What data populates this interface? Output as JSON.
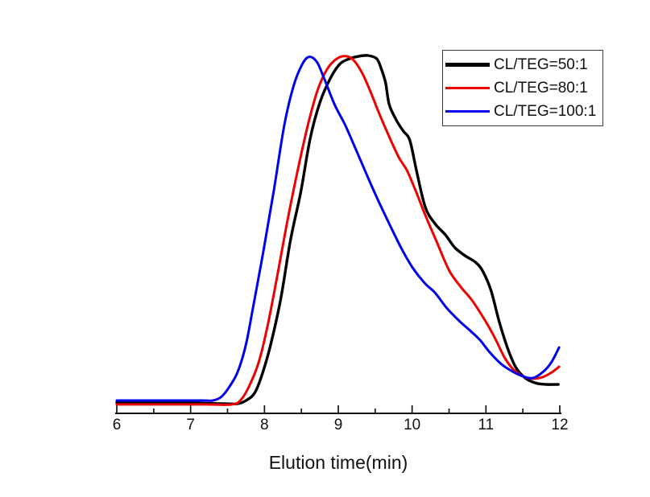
{
  "figure": {
    "background": "#ffffff",
    "axis_color": "#111111"
  },
  "chart_data": {
    "type": "line",
    "title": "",
    "xlabel": "Elution time(min)",
    "ylabel": "",
    "xlim": [
      6,
      12
    ],
    "ylim": [
      0,
      1.08
    ],
    "x_major_ticks": [
      6,
      7,
      8,
      9,
      10,
      11,
      12
    ],
    "x_minor_tick_step": 0.5,
    "grid": false,
    "legend": {
      "position": "top-right",
      "border": true
    },
    "series": [
      {
        "name": "CL/TEG=50:1",
        "color": "#000000",
        "line_width": 3.4,
        "points": [
          [
            6.0,
            0.03
          ],
          [
            6.5,
            0.029
          ],
          [
            7.0,
            0.029
          ],
          [
            7.45,
            0.027
          ],
          [
            7.64,
            0.027
          ],
          [
            7.76,
            0.037
          ],
          [
            7.87,
            0.058
          ],
          [
            7.97,
            0.11
          ],
          [
            8.08,
            0.189
          ],
          [
            8.22,
            0.319
          ],
          [
            8.35,
            0.481
          ],
          [
            8.49,
            0.617
          ],
          [
            8.62,
            0.769
          ],
          [
            8.75,
            0.868
          ],
          [
            8.89,
            0.935
          ],
          [
            9.02,
            0.976
          ],
          [
            9.15,
            0.991
          ],
          [
            9.28,
            0.998
          ],
          [
            9.4,
            1.0
          ],
          [
            9.52,
            0.991
          ],
          [
            9.58,
            0.964
          ],
          [
            9.64,
            0.924
          ],
          [
            9.69,
            0.863
          ],
          [
            9.79,
            0.818
          ],
          [
            9.88,
            0.789
          ],
          [
            9.97,
            0.762
          ],
          [
            10.06,
            0.677
          ],
          [
            10.18,
            0.575
          ],
          [
            10.31,
            0.53
          ],
          [
            10.45,
            0.499
          ],
          [
            10.58,
            0.463
          ],
          [
            10.72,
            0.44
          ],
          [
            10.86,
            0.422
          ],
          [
            10.96,
            0.396
          ],
          [
            11.07,
            0.342
          ],
          [
            11.18,
            0.256
          ],
          [
            11.29,
            0.184
          ],
          [
            11.4,
            0.13
          ],
          [
            11.53,
            0.099
          ],
          [
            11.67,
            0.085
          ],
          [
            11.81,
            0.081
          ],
          [
            11.98,
            0.081
          ]
        ]
      },
      {
        "name": "CL/TEG=80:1",
        "color": "#ee0000",
        "line_width": 3.0,
        "points": [
          [
            6.0,
            0.025
          ],
          [
            6.6,
            0.025
          ],
          [
            7.2,
            0.025
          ],
          [
            7.56,
            0.025
          ],
          [
            7.69,
            0.04
          ],
          [
            7.82,
            0.088
          ],
          [
            7.93,
            0.148
          ],
          [
            8.05,
            0.252
          ],
          [
            8.18,
            0.391
          ],
          [
            8.31,
            0.537
          ],
          [
            8.45,
            0.679
          ],
          [
            8.59,
            0.807
          ],
          [
            8.72,
            0.903
          ],
          [
            8.85,
            0.962
          ],
          [
            8.98,
            0.991
          ],
          [
            9.11,
            0.998
          ],
          [
            9.22,
            0.984
          ],
          [
            9.33,
            0.948
          ],
          [
            9.44,
            0.897
          ],
          [
            9.55,
            0.84
          ],
          [
            9.69,
            0.773
          ],
          [
            9.82,
            0.715
          ],
          [
            9.93,
            0.679
          ],
          [
            10.06,
            0.616
          ],
          [
            10.18,
            0.553
          ],
          [
            10.33,
            0.481
          ],
          [
            10.5,
            0.4
          ],
          [
            10.66,
            0.353
          ],
          [
            10.8,
            0.319
          ],
          [
            10.93,
            0.279
          ],
          [
            11.03,
            0.245
          ],
          [
            11.13,
            0.207
          ],
          [
            11.26,
            0.153
          ],
          [
            11.4,
            0.117
          ],
          [
            11.56,
            0.099
          ],
          [
            11.73,
            0.099
          ],
          [
            11.87,
            0.112
          ],
          [
            11.99,
            0.13
          ]
        ]
      },
      {
        "name": "CL/TEG=100:1",
        "color": "#0000ee",
        "line_width": 3.0,
        "points": [
          [
            6.0,
            0.036
          ],
          [
            6.6,
            0.036
          ],
          [
            7.15,
            0.036
          ],
          [
            7.3,
            0.036
          ],
          [
            7.42,
            0.047
          ],
          [
            7.53,
            0.076
          ],
          [
            7.64,
            0.117
          ],
          [
            7.75,
            0.193
          ],
          [
            7.85,
            0.301
          ],
          [
            7.99,
            0.458
          ],
          [
            8.13,
            0.627
          ],
          [
            8.27,
            0.807
          ],
          [
            8.39,
            0.912
          ],
          [
            8.5,
            0.971
          ],
          [
            8.6,
            0.996
          ],
          [
            8.71,
            0.982
          ],
          [
            8.81,
            0.935
          ],
          [
            8.95,
            0.863
          ],
          [
            9.09,
            0.807
          ],
          [
            9.22,
            0.746
          ],
          [
            9.36,
            0.679
          ],
          [
            9.52,
            0.604
          ],
          [
            9.69,
            0.53
          ],
          [
            9.85,
            0.463
          ],
          [
            10.0,
            0.409
          ],
          [
            10.17,
            0.364
          ],
          [
            10.31,
            0.337
          ],
          [
            10.47,
            0.294
          ],
          [
            10.64,
            0.258
          ],
          [
            10.77,
            0.234
          ],
          [
            10.91,
            0.207
          ],
          [
            11.05,
            0.171
          ],
          [
            11.2,
            0.139
          ],
          [
            11.36,
            0.117
          ],
          [
            11.51,
            0.103
          ],
          [
            11.64,
            0.099
          ],
          [
            11.78,
            0.117
          ],
          [
            11.89,
            0.144
          ],
          [
            11.99,
            0.184
          ]
        ]
      }
    ]
  }
}
